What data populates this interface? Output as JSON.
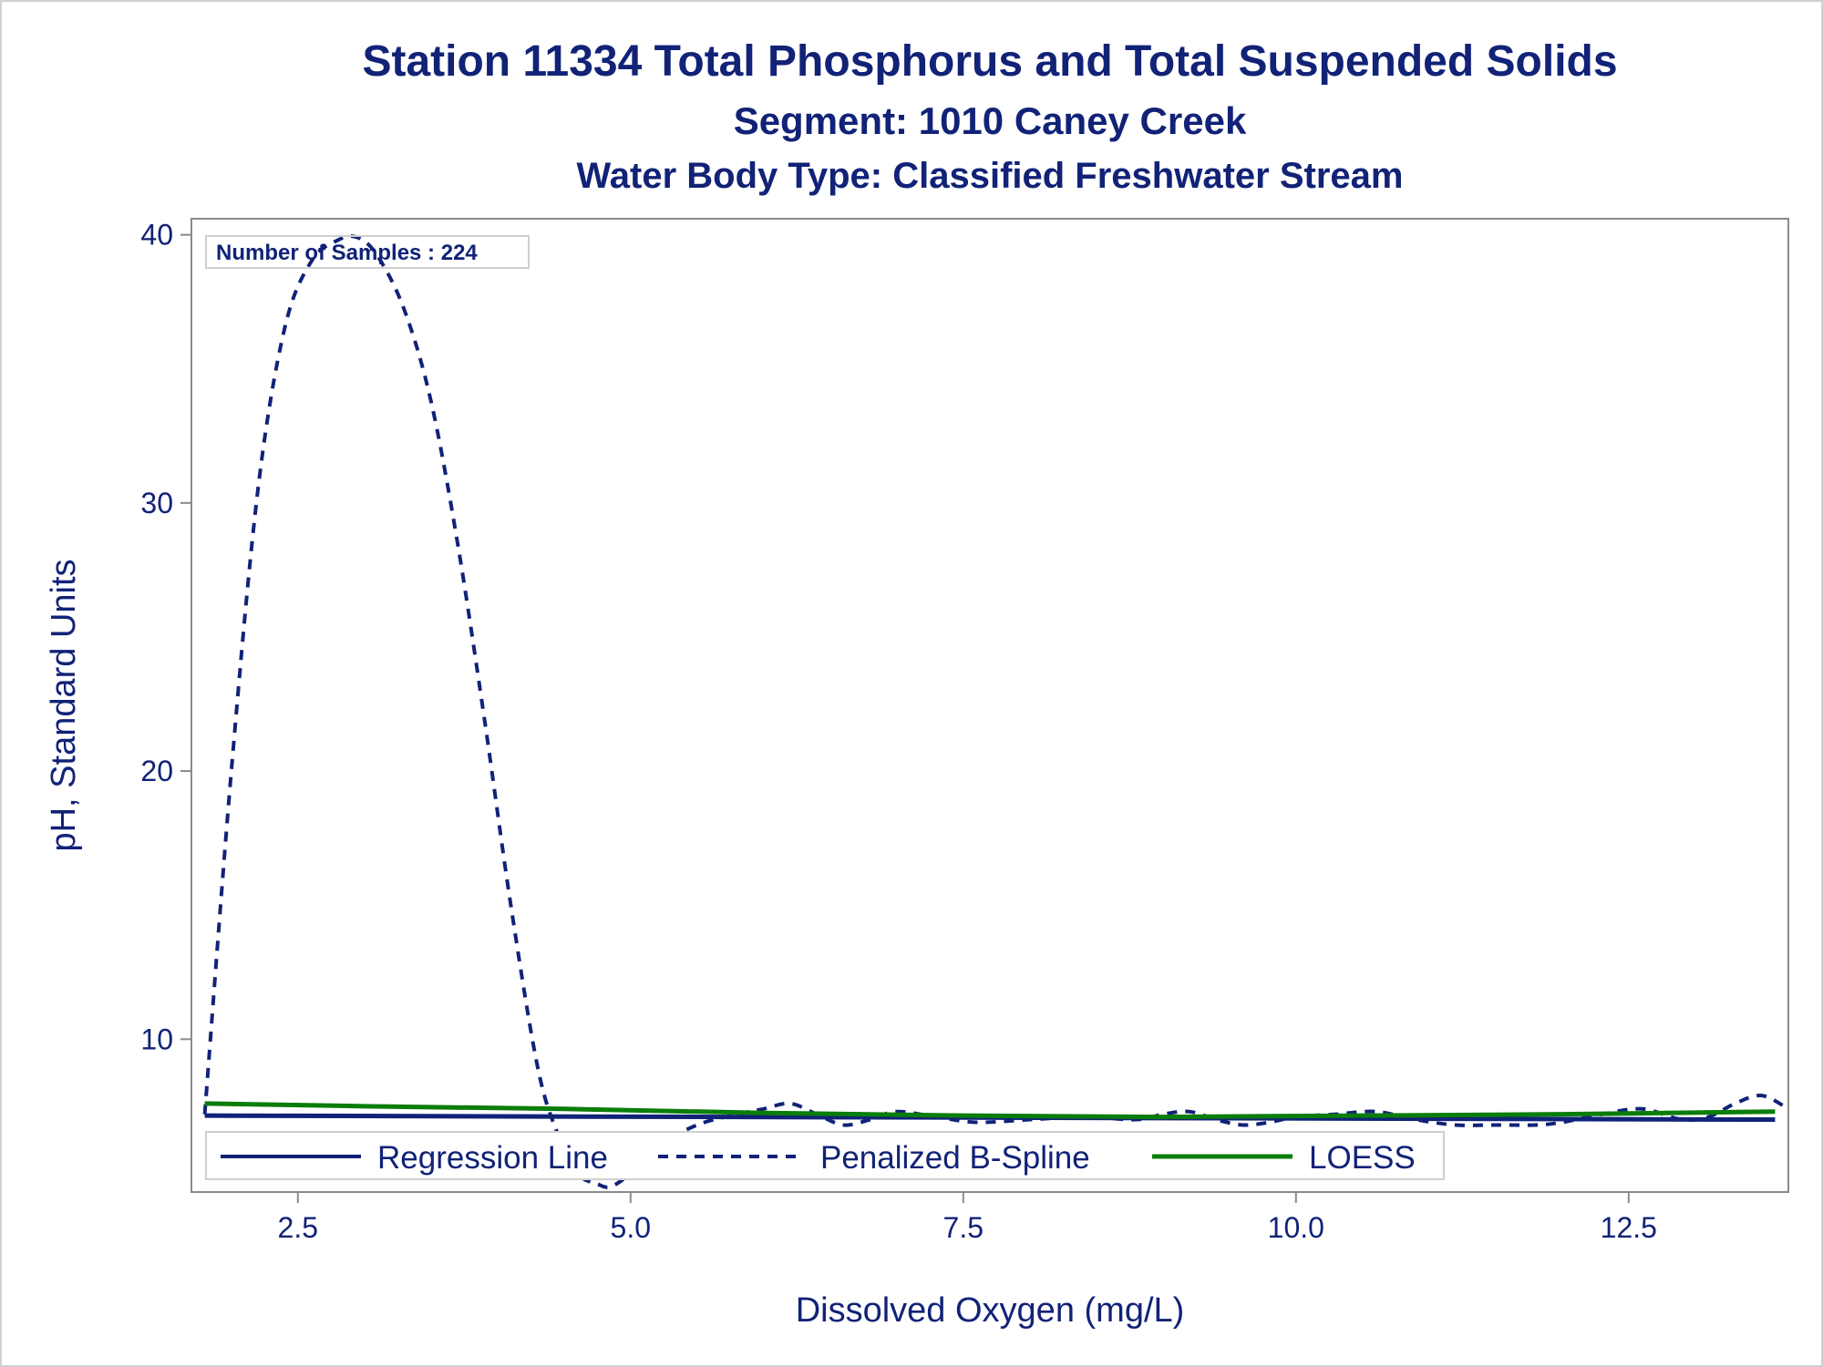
{
  "chart_data": {
    "type": "line",
    "title": "Station 11334  Total Phosphorus and Total Suspended Solids",
    "subtitle": "Segment: 1010  Caney Creek",
    "subtitle2": "Water Body Type: Classified Freshwater Stream",
    "xlabel": "Dissolved Oxygen (mg/L)",
    "ylabel": "pH, Standard Units",
    "xlim": [
      1.7,
      13.7
    ],
    "ylim": [
      4.3,
      40.6
    ],
    "xticks": [
      "2.5",
      "5.0",
      "7.5",
      "10.0",
      "12.5"
    ],
    "yticks": [
      "10",
      "20",
      "30",
      "40"
    ],
    "xtick_values": [
      2.5,
      5.0,
      7.5,
      10.0,
      12.5
    ],
    "ytick_values": [
      10,
      20,
      30,
      40
    ],
    "annotation": "Number of Samples : 224",
    "legend_position": "bottom-inside",
    "series": [
      {
        "name": "Regression Line",
        "style": "solid",
        "color": "#112277",
        "x": [
          1.8,
          13.6
        ],
        "y": [
          7.15,
          7.0
        ]
      },
      {
        "name": "Penalized B-Spline",
        "style": "dashed",
        "color": "#112277",
        "x": [
          1.8,
          2.0,
          2.2,
          2.4,
          2.6,
          2.8,
          2.95,
          3.1,
          3.3,
          3.5,
          3.7,
          3.9,
          4.1,
          4.3,
          4.45,
          4.6,
          4.75,
          4.85,
          5.0,
          5.2,
          5.5,
          5.8,
          6.0,
          6.2,
          6.4,
          6.6,
          6.8,
          7.0,
          7.3,
          7.6,
          8.0,
          8.4,
          8.8,
          9.0,
          9.2,
          9.4,
          9.6,
          9.8,
          10.0,
          10.3,
          10.6,
          10.9,
          11.2,
          11.5,
          11.8,
          12.0,
          12.3,
          12.6,
          12.9,
          13.1,
          13.3,
          13.5,
          13.7
        ],
        "y": [
          7.2,
          20.0,
          30.5,
          36.5,
          39.0,
          39.8,
          39.9,
          39.2,
          37.2,
          33.8,
          28.5,
          22.0,
          15.0,
          9.0,
          6.5,
          5.0,
          4.6,
          4.5,
          5.0,
          6.0,
          6.8,
          7.2,
          7.4,
          7.6,
          7.2,
          6.8,
          7.0,
          7.3,
          7.1,
          6.9,
          7.0,
          7.1,
          7.0,
          7.2,
          7.3,
          7.0,
          6.8,
          6.9,
          7.1,
          7.2,
          7.3,
          7.0,
          6.8,
          6.8,
          6.8,
          6.9,
          7.2,
          7.4,
          7.0,
          7.1,
          7.6,
          7.9,
          7.4
        ]
      },
      {
        "name": "LOESS",
        "style": "solid",
        "color": "#0a7d0a",
        "x": [
          1.8,
          3.0,
          4.5,
          6.0,
          7.5,
          9.0,
          10.5,
          12.0,
          13.6
        ],
        "y": [
          7.6,
          7.5,
          7.4,
          7.25,
          7.15,
          7.1,
          7.15,
          7.2,
          7.3
        ]
      }
    ]
  }
}
